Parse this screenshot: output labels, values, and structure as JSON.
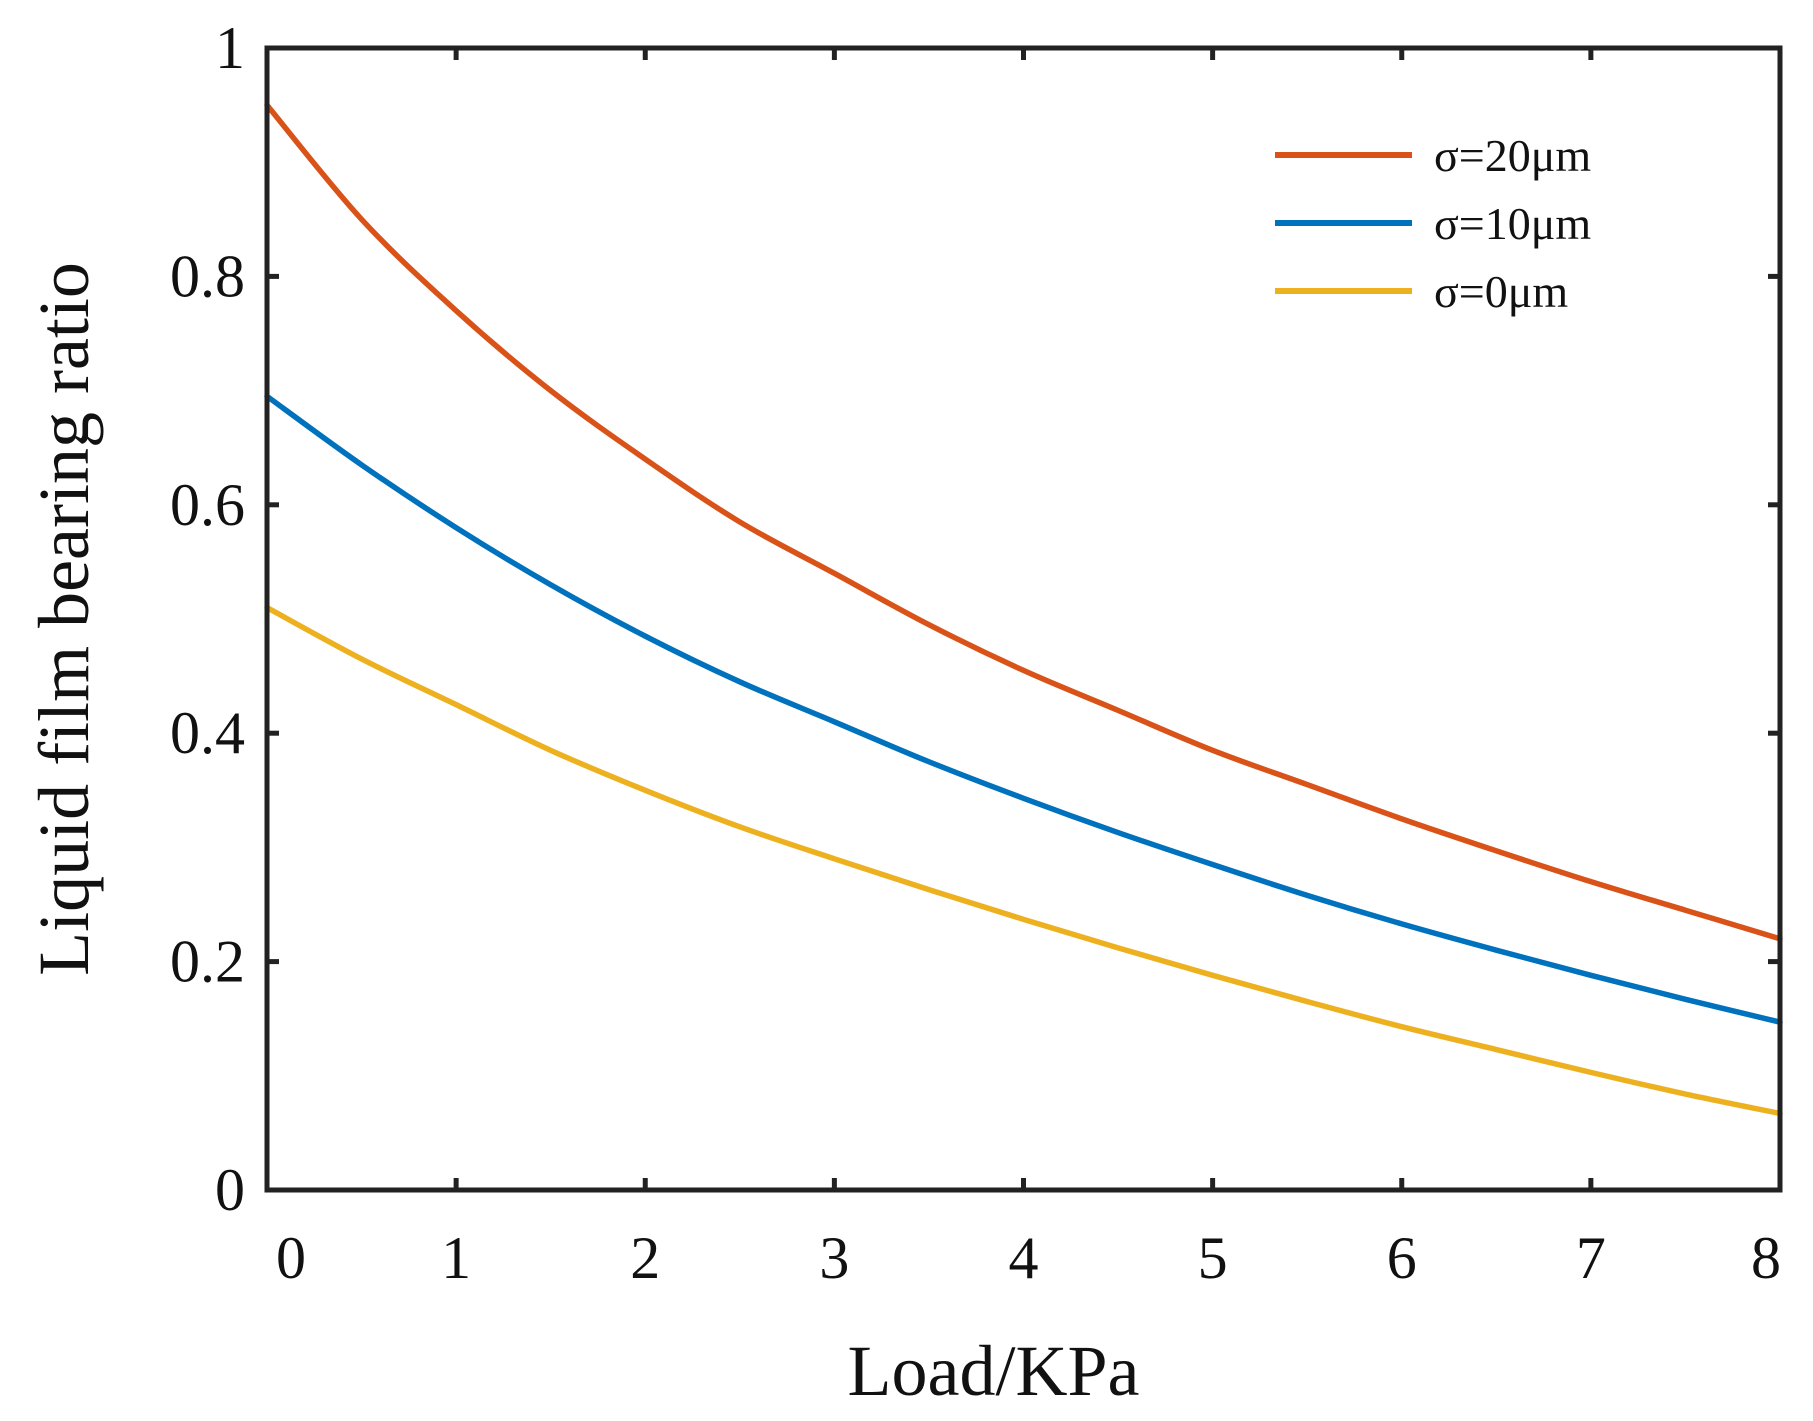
{
  "chart_data": {
    "type": "line",
    "title": "",
    "xlabel": "Load/KPa",
    "ylabel": "Liquid film bearing ratio",
    "xlim": [
      0,
      8
    ],
    "ylim": [
      0,
      1
    ],
    "xticks": [
      0,
      1,
      2,
      3,
      4,
      5,
      6,
      7,
      8
    ],
    "yticks": [
      0,
      0.2,
      0.4,
      0.6,
      0.8,
      1
    ],
    "xtick_labels": [
      "0",
      "1",
      "2",
      "3",
      "4",
      "5",
      "6",
      "7",
      "8"
    ],
    "ytick_labels": [
      "0",
      "0.2",
      "0.4",
      "0.6",
      "0.8",
      "1"
    ],
    "grid": false,
    "legend_position": "top-right",
    "x": [
      0,
      0.5,
      1,
      1.5,
      2,
      2.5,
      3,
      3.5,
      4,
      4.5,
      5,
      5.5,
      6,
      6.5,
      7,
      7.5,
      8
    ],
    "series": [
      {
        "name": "σ=20μm",
        "color": "#D95319",
        "values": [
          0.95,
          0.85,
          0.77,
          0.7,
          0.64,
          0.585,
          0.54,
          0.495,
          0.455,
          0.42,
          0.385,
          0.355,
          0.325,
          0.297,
          0.27,
          0.245,
          0.22
        ]
      },
      {
        "name": "σ=10μm",
        "color": "#0072BD",
        "values": [
          0.695,
          0.635,
          0.58,
          0.53,
          0.485,
          0.445,
          0.41,
          0.375,
          0.343,
          0.313,
          0.285,
          0.258,
          0.233,
          0.21,
          0.188,
          0.167,
          0.147
        ]
      },
      {
        "name": "σ=0μm",
        "color": "#EDB120",
        "values": [
          0.51,
          0.465,
          0.425,
          0.385,
          0.35,
          0.318,
          0.29,
          0.263,
          0.237,
          0.212,
          0.188,
          0.165,
          0.143,
          0.123,
          0.103,
          0.084,
          0.067
        ]
      }
    ]
  }
}
